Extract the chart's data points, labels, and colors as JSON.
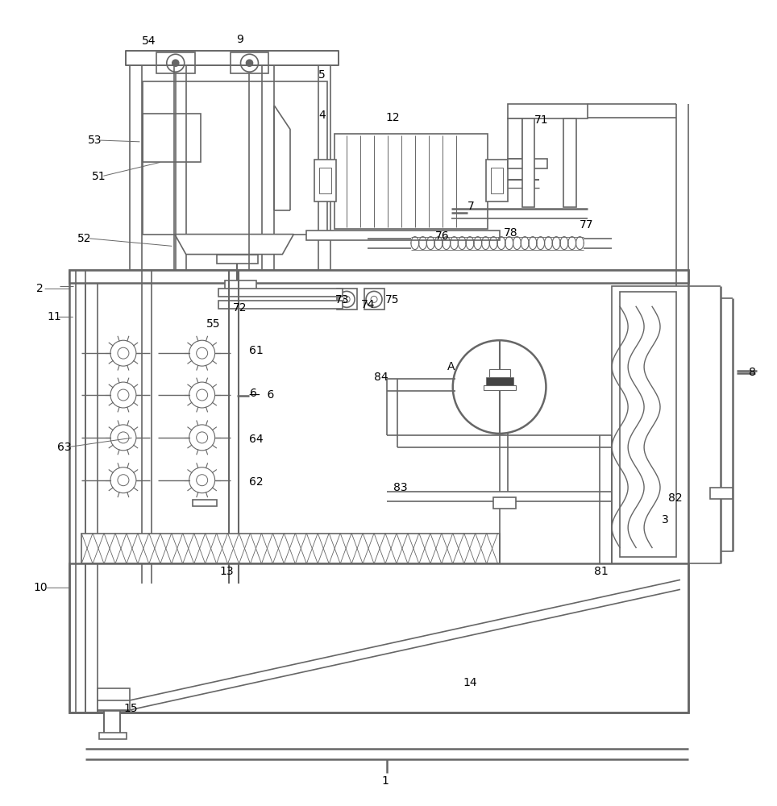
{
  "fig_width": 9.64,
  "fig_height": 10.0,
  "dpi": 100,
  "lc": "#666666",
  "bg": "#ffffff",
  "lw": 1.2,
  "lw2": 1.8
}
